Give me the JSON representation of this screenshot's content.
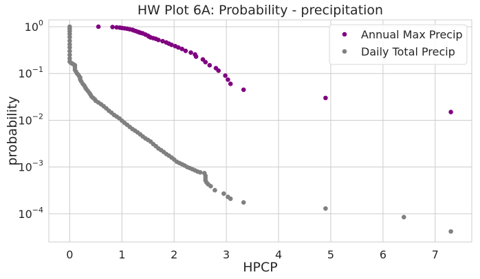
{
  "chart_data": {
    "type": "scatter",
    "title": "HW Plot 6A: Probability - precipitation",
    "xlabel": "HPCP",
    "ylabel": "probability",
    "xlim": [
      -0.4,
      7.7
    ],
    "ylim": [
      2.5e-05,
      1.4
    ],
    "yscale": "log",
    "grid": true,
    "legend_position": "top-right",
    "x_ticks": [
      0,
      1,
      2,
      3,
      4,
      5,
      6,
      7
    ],
    "x_tick_labels": [
      "0",
      "1",
      "2",
      "3",
      "4",
      "5",
      "6",
      "7"
    ],
    "y_ticks": [
      0.0001,
      0.001,
      0.01,
      0.1,
      1
    ],
    "y_tick_labels": [
      {
        "base": "10",
        "exp": "−4"
      },
      {
        "base": "10",
        "exp": "−3"
      },
      {
        "base": "10",
        "exp": "−2"
      },
      {
        "base": "10",
        "exp": "−1"
      },
      {
        "base": "10",
        "exp": "0"
      }
    ],
    "series": [
      {
        "name": "Annual Max Precip",
        "color": "#800080",
        "points": [
          [
            0.55,
            1.0
          ],
          [
            0.82,
            0.985
          ],
          [
            0.9,
            0.97
          ],
          [
            0.96,
            0.955
          ],
          [
            1.0,
            0.94
          ],
          [
            1.05,
            0.925
          ],
          [
            1.1,
            0.905
          ],
          [
            1.15,
            0.88
          ],
          [
            1.2,
            0.86
          ],
          [
            1.22,
            0.84
          ],
          [
            1.26,
            0.81
          ],
          [
            1.3,
            0.78
          ],
          [
            1.33,
            0.76
          ],
          [
            1.36,
            0.74
          ],
          [
            1.4,
            0.72
          ],
          [
            1.45,
            0.68
          ],
          [
            1.5,
            0.64
          ],
          [
            1.52,
            0.615
          ],
          [
            1.55,
            0.59
          ],
          [
            1.6,
            0.57
          ],
          [
            1.65,
            0.55
          ],
          [
            1.7,
            0.52
          ],
          [
            1.78,
            0.49
          ],
          [
            1.85,
            0.46
          ],
          [
            1.9,
            0.435
          ],
          [
            1.95,
            0.41
          ],
          [
            2.02,
            0.385
          ],
          [
            2.08,
            0.36
          ],
          [
            2.15,
            0.335
          ],
          [
            2.22,
            0.305
          ],
          [
            2.32,
            0.28
          ],
          [
            2.4,
            0.255
          ],
          [
            2.42,
            0.23
          ],
          [
            2.55,
            0.2
          ],
          [
            2.6,
            0.175
          ],
          [
            2.68,
            0.15
          ],
          [
            2.8,
            0.13
          ],
          [
            2.85,
            0.115
          ],
          [
            2.98,
            0.09
          ],
          [
            3.03,
            0.074
          ],
          [
            3.08,
            0.06
          ],
          [
            3.33,
            0.045
          ],
          [
            4.9,
            0.03
          ],
          [
            7.3,
            0.015
          ]
        ]
      },
      {
        "name": "Daily Total Precip",
        "color": "#808080",
        "points": [
          [
            0.0,
            1.0
          ],
          [
            0.0,
            0.9
          ],
          [
            0.0,
            0.8
          ],
          [
            0.0,
            0.7
          ],
          [
            0.0,
            0.6
          ],
          [
            0.0,
            0.5
          ],
          [
            0.0,
            0.42
          ],
          [
            0.0,
            0.36
          ],
          [
            0.0,
            0.3
          ],
          [
            0.0,
            0.25
          ],
          [
            0.0,
            0.21
          ],
          [
            0.0,
            0.18
          ],
          [
            0.02,
            0.17
          ],
          [
            0.04,
            0.165
          ],
          [
            0.06,
            0.16
          ],
          [
            0.08,
            0.155
          ],
          [
            0.1,
            0.15
          ],
          [
            0.1,
            0.135
          ],
          [
            0.1,
            0.12
          ],
          [
            0.12,
            0.11
          ],
          [
            0.14,
            0.1
          ],
          [
            0.16,
            0.095
          ],
          [
            0.18,
            0.088
          ],
          [
            0.2,
            0.082
          ],
          [
            0.2,
            0.075
          ],
          [
            0.22,
            0.068
          ],
          [
            0.25,
            0.06
          ],
          [
            0.28,
            0.055
          ],
          [
            0.3,
            0.05
          ],
          [
            0.32,
            0.046
          ],
          [
            0.35,
            0.042
          ],
          [
            0.38,
            0.038
          ],
          [
            0.4,
            0.035
          ],
          [
            0.42,
            0.032
          ],
          [
            0.45,
            0.03
          ],
          [
            0.48,
            0.028
          ],
          [
            0.5,
            0.026
          ],
          [
            0.55,
            0.024
          ],
          [
            0.6,
            0.022
          ],
          [
            0.65,
            0.02
          ],
          [
            0.7,
            0.018
          ],
          [
            0.75,
            0.016
          ],
          [
            0.8,
            0.0145
          ],
          [
            0.85,
            0.013
          ],
          [
            0.9,
            0.012
          ],
          [
            0.95,
            0.011
          ],
          [
            1.0,
            0.0098
          ],
          [
            1.05,
            0.0088
          ],
          [
            1.1,
            0.008
          ],
          [
            1.15,
            0.0072
          ],
          [
            1.2,
            0.0065
          ],
          [
            1.25,
            0.006
          ],
          [
            1.3,
            0.0055
          ],
          [
            1.35,
            0.005
          ],
          [
            1.4,
            0.0045
          ],
          [
            1.45,
            0.0041
          ],
          [
            1.5,
            0.0038
          ],
          [
            1.55,
            0.0035
          ],
          [
            1.6,
            0.0031
          ],
          [
            1.65,
            0.0028
          ],
          [
            1.7,
            0.0025
          ],
          [
            1.75,
            0.0023
          ],
          [
            1.8,
            0.0021
          ],
          [
            1.85,
            0.0019
          ],
          [
            1.9,
            0.00175
          ],
          [
            1.95,
            0.0016
          ],
          [
            2.0,
            0.00145
          ],
          [
            2.05,
            0.0013
          ],
          [
            2.1,
            0.00122
          ],
          [
            2.15,
            0.00115
          ],
          [
            2.2,
            0.00108
          ],
          [
            2.25,
            0.001
          ],
          [
            2.3,
            0.00095
          ],
          [
            2.35,
            0.0009
          ],
          [
            2.4,
            0.00085
          ],
          [
            2.45,
            0.0008
          ],
          [
            2.5,
            0.00077
          ],
          [
            2.58,
            0.00074
          ],
          [
            2.6,
            0.00065
          ],
          [
            2.6,
            0.00058
          ],
          [
            2.6,
            0.00052
          ],
          [
            2.62,
            0.00047
          ],
          [
            2.65,
            0.00043
          ],
          [
            2.7,
            0.00039
          ],
          [
            2.78,
            0.00032
          ],
          [
            2.95,
            0.00027
          ],
          [
            3.03,
            0.00023
          ],
          [
            3.08,
            0.00021
          ],
          [
            3.33,
            0.000175
          ],
          [
            4.9,
            0.00013
          ],
          [
            6.4,
            8.5e-05
          ],
          [
            7.3,
            4.2e-05
          ]
        ]
      }
    ]
  }
}
